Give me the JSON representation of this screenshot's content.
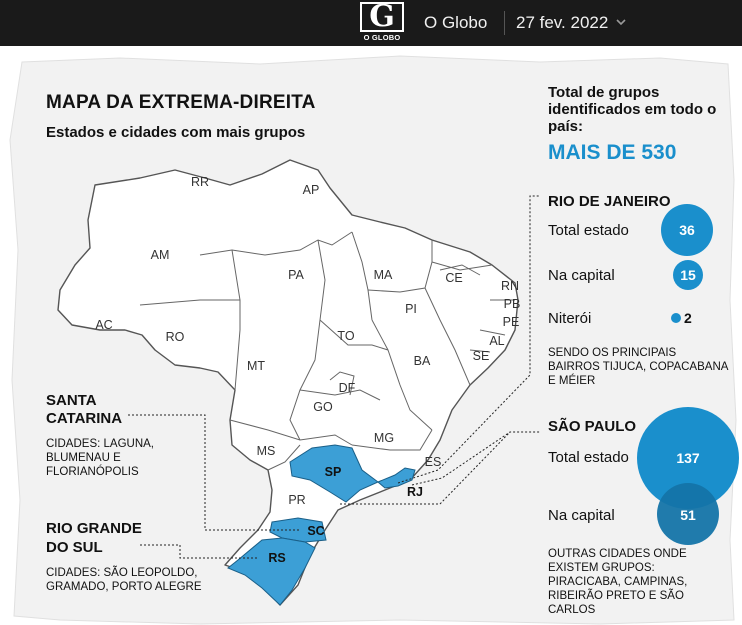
{
  "header": {
    "logo_letter": "G",
    "logo_text": "O GLOBO",
    "brand": "O Globo",
    "date": "27 fev. 2022"
  },
  "map": {
    "title": "MAPA DA EXTREMA-DIREITA",
    "subtitle": "Estados e cidades com mais grupos",
    "highlight_color": "#3c9fd6",
    "total": {
      "label": "Total de grupos identificados em todo o país:",
      "value": "MAIS DE 530"
    },
    "states": [
      "RR",
      "AP",
      "AM",
      "PA",
      "MA",
      "CE",
      "RN",
      "PB",
      "PE",
      "AL",
      "SE",
      "AC",
      "RO",
      "TO",
      "PI",
      "MT",
      "BA",
      "DF",
      "GO",
      "MS",
      "MG",
      "ES",
      "PR"
    ],
    "highlighted_states": [
      "SP",
      "RJ",
      "SC",
      "RS"
    ]
  },
  "rio": {
    "title": "RIO DE JANEIRO",
    "rows": [
      {
        "label": "Total estado",
        "value": 36
      },
      {
        "label": "Na capital",
        "value": 15
      },
      {
        "label": "Niterói",
        "value": 2
      }
    ],
    "note": "SENDO OS PRINCIPAIS BAIRROS TIJUCA, COPACABANA E MÉIER"
  },
  "sp": {
    "title": "SÃO PAULO",
    "rows": [
      {
        "label": "Total estado",
        "value": 137
      },
      {
        "label": "Na capital",
        "value": 51
      }
    ],
    "note": "OUTRAS CIDADES ONDE EXISTEM GRUPOS: PIRACICABA, CAMPINAS, RIBEIRÃO PRETO E SÃO CARLOS"
  },
  "sc": {
    "title_line1": "SANTA",
    "title_line2": "CATARINA",
    "note": "CIDADES: LAGUNA, BLUMENAU E FLORIANÓPOLIS"
  },
  "rs": {
    "title_line1": "RIO GRANDE",
    "title_line2": "DO SUL",
    "note": "CIDADES: SÃO LEOPOLDO, GRAMADO, PORTO ALEGRE"
  }
}
